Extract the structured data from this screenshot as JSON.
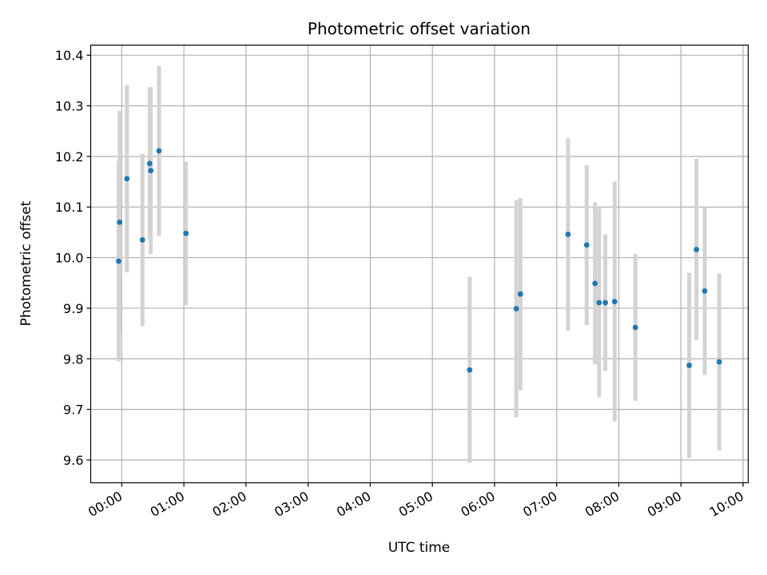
{
  "chart_data": {
    "type": "scatter",
    "title": "Photometric offset variation",
    "xlabel": "UTC time",
    "ylabel": "Photometric offset",
    "x_tick_labels": [
      "00:00",
      "01:00",
      "02:00",
      "03:00",
      "04:00",
      "05:00",
      "06:00",
      "07:00",
      "08:00",
      "09:00",
      "10:00"
    ],
    "y_tick_labels": [
      "9.6",
      "9.7",
      "9.8",
      "9.9",
      "10.0",
      "10.1",
      "10.2",
      "10.3",
      "10.4"
    ],
    "xlim": [
      "23:30",
      "10:05"
    ],
    "ylim": [
      9.555,
      10.42
    ],
    "grid": true,
    "marker_color": "#1f77b4",
    "errorbar_color": "#d3d3d3",
    "series": [
      {
        "points": [
          {
            "x": "23:57",
            "y": 9.993,
            "err": 0.198
          },
          {
            "x": "23:58",
            "y": 10.07,
            "err": 0.22
          },
          {
            "x": "00:05",
            "y": 10.156,
            "err": 0.185
          },
          {
            "x": "00:20",
            "y": 10.035,
            "err": 0.17
          },
          {
            "x": "00:27",
            "y": 10.186,
            "err": 0.15
          },
          {
            "x": "00:28",
            "y": 10.172,
            "err": 0.165
          },
          {
            "x": "00:36",
            "y": 10.211,
            "err": 0.168
          },
          {
            "x": "01:02",
            "y": 10.048,
            "err": 0.142
          },
          {
            "x": "05:36",
            "y": 9.778,
            "err": 0.184
          },
          {
            "x": "06:21",
            "y": 9.899,
            "err": 0.215
          },
          {
            "x": "06:25",
            "y": 9.928,
            "err": 0.19
          },
          {
            "x": "07:11",
            "y": 10.046,
            "err": 0.19
          },
          {
            "x": "07:29",
            "y": 10.025,
            "err": 0.158
          },
          {
            "x": "07:37",
            "y": 9.949,
            "err": 0.16
          },
          {
            "x": "07:41",
            "y": 9.911,
            "err": 0.187
          },
          {
            "x": "07:47",
            "y": 9.911,
            "err": 0.135
          },
          {
            "x": "07:56",
            "y": 9.913,
            "err": 0.237
          },
          {
            "x": "08:16",
            "y": 9.862,
            "err": 0.145
          },
          {
            "x": "09:08",
            "y": 9.787,
            "err": 0.183
          },
          {
            "x": "09:15",
            "y": 10.016,
            "err": 0.179
          },
          {
            "x": "09:23",
            "y": 9.934,
            "err": 0.166
          },
          {
            "x": "09:37",
            "y": 9.794,
            "err": 0.175
          }
        ]
      }
    ]
  }
}
